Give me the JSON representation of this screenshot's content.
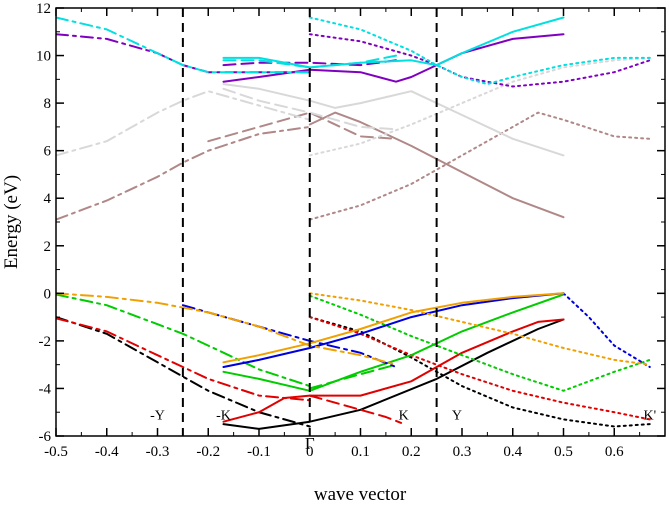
{
  "chart_data": {
    "type": "line",
    "title": "",
    "xlabel": "wave vector",
    "ylabel": "Energy (eV)",
    "xlim": [
      -0.5,
      0.7
    ],
    "ylim": [
      -6,
      12
    ],
    "xticks": [
      -0.5,
      -0.4,
      -0.3,
      -0.2,
      -0.1,
      0,
      0.1,
      0.2,
      0.3,
      0.4,
      0.5,
      0.6
    ],
    "yticks": [
      -6,
      -4,
      -2,
      0,
      2,
      4,
      6,
      8,
      10,
      12
    ],
    "grid": false,
    "legend": "none",
    "vlines": [
      -0.25,
      0,
      0.25
    ],
    "annotations": [
      {
        "text": "-Y",
        "x": -0.3,
        "y": -5.3
      },
      {
        "text": "-K",
        "x": -0.17,
        "y": -5.3
      },
      {
        "text": "K",
        "x": 0.185,
        "y": -5.3
      },
      {
        "text": "Y",
        "x": 0.29,
        "y": -5.3
      },
      {
        "text": "K'",
        "x": 0.67,
        "y": -5.3
      },
      {
        "text": "Γ",
        "x": 0,
        "y": -6.55
      }
    ],
    "series": [
      {
        "color": "#000000",
        "dash": "dashdot",
        "points": [
          [
            -0.5,
            -1.0
          ],
          [
            -0.4,
            -1.7
          ],
          [
            -0.3,
            -2.9
          ],
          [
            -0.25,
            -3.5
          ],
          [
            -0.2,
            -4.1
          ],
          [
            -0.1,
            -5.0
          ],
          [
            0,
            -5.6
          ]
        ]
      },
      {
        "color": "#000000",
        "dash": "solid",
        "points": [
          [
            -0.17,
            -5.5
          ],
          [
            -0.1,
            -5.7
          ],
          [
            0,
            -5.4
          ],
          [
            0.1,
            -4.9
          ],
          [
            0.25,
            -3.6
          ],
          [
            0.35,
            -2.5
          ],
          [
            0.45,
            -1.5
          ],
          [
            0.5,
            -1.1
          ]
        ]
      },
      {
        "color": "#000000",
        "dash": "dot",
        "points": [
          [
            0,
            -1.0
          ],
          [
            0.1,
            -1.6
          ],
          [
            0.2,
            -2.7
          ],
          [
            0.3,
            -3.9
          ],
          [
            0.4,
            -4.8
          ],
          [
            0.5,
            -5.3
          ],
          [
            0.6,
            -5.6
          ],
          [
            0.67,
            -5.5
          ]
        ]
      },
      {
        "color": "#e00000",
        "dash": "dashdot",
        "points": [
          [
            -0.5,
            -1.05
          ],
          [
            -0.4,
            -1.6
          ],
          [
            -0.3,
            -2.6
          ],
          [
            -0.25,
            -3.1
          ],
          [
            -0.2,
            -3.6
          ],
          [
            -0.1,
            -4.3
          ],
          [
            0,
            -4.5
          ]
        ]
      },
      {
        "color": "#e00000",
        "dash": "dash",
        "points": [
          [
            0,
            -4.3
          ],
          [
            0.05,
            -4.6
          ],
          [
            0.1,
            -4.9
          ],
          [
            0.15,
            -5.2
          ],
          [
            0.18,
            -5.45
          ]
        ]
      },
      {
        "color": "#e00000",
        "dash": "solid",
        "points": [
          [
            -0.17,
            -5.4
          ],
          [
            -0.1,
            -5.0
          ],
          [
            -0.05,
            -4.4
          ],
          [
            0,
            -4.3
          ],
          [
            0.1,
            -4.3
          ],
          [
            0.2,
            -3.7
          ],
          [
            0.3,
            -2.5
          ],
          [
            0.4,
            -1.6
          ],
          [
            0.45,
            -1.2
          ],
          [
            0.5,
            -1.1
          ]
        ]
      },
      {
        "color": "#e00000",
        "dash": "dot",
        "points": [
          [
            0,
            -1.0
          ],
          [
            0.1,
            -1.7
          ],
          [
            0.2,
            -2.6
          ],
          [
            0.3,
            -3.4
          ],
          [
            0.4,
            -4.1
          ],
          [
            0.5,
            -4.6
          ],
          [
            0.6,
            -5.0
          ],
          [
            0.67,
            -5.3
          ]
        ]
      },
      {
        "color": "#00cc00",
        "dash": "dashdot",
        "points": [
          [
            -0.5,
            -0.05
          ],
          [
            -0.4,
            -0.5
          ],
          [
            -0.3,
            -1.3
          ],
          [
            -0.25,
            -1.7
          ],
          [
            -0.2,
            -2.2
          ],
          [
            -0.1,
            -3.2
          ],
          [
            0,
            -3.9
          ]
        ]
      },
      {
        "color": "#00cc00",
        "dash": "dash",
        "points": [
          [
            0,
            -4.0
          ],
          [
            0.1,
            -3.4
          ],
          [
            0.17,
            -3.0
          ]
        ]
      },
      {
        "color": "#00cc00",
        "dash": "solid",
        "points": [
          [
            -0.17,
            -3.3
          ],
          [
            -0.1,
            -3.6
          ],
          [
            0,
            -4.1
          ],
          [
            0.05,
            -3.7
          ],
          [
            0.1,
            -3.3
          ],
          [
            0.2,
            -2.6
          ],
          [
            0.3,
            -1.6
          ],
          [
            0.4,
            -0.8
          ],
          [
            0.5,
            -0.05
          ]
        ]
      },
      {
        "color": "#00cc00",
        "dash": "dot",
        "points": [
          [
            0,
            -0.1
          ],
          [
            0.1,
            -0.9
          ],
          [
            0.2,
            -1.8
          ],
          [
            0.3,
            -2.6
          ],
          [
            0.4,
            -3.4
          ],
          [
            0.5,
            -4.1
          ],
          [
            0.6,
            -3.3
          ],
          [
            0.67,
            -2.8
          ]
        ]
      },
      {
        "color": "#0000dd",
        "dash": "dashdot",
        "points": [
          [
            -0.25,
            -0.5
          ],
          [
            -0.2,
            -0.8
          ],
          [
            -0.1,
            -1.4
          ],
          [
            0,
            -2.0
          ],
          [
            0.1,
            -2.5
          ],
          [
            0.17,
            -3.1
          ]
        ]
      },
      {
        "color": "#0000dd",
        "dash": "solid",
        "points": [
          [
            -0.17,
            -3.1
          ],
          [
            -0.1,
            -2.8
          ],
          [
            0,
            -2.3
          ],
          [
            0.1,
            -1.7
          ],
          [
            0.2,
            -1.0
          ],
          [
            0.3,
            -0.5
          ],
          [
            0.4,
            -0.2
          ],
          [
            0.5,
            0.0
          ]
        ]
      },
      {
        "color": "#0000dd",
        "dash": "dot",
        "points": [
          [
            0.5,
            0.0
          ],
          [
            0.55,
            -1.0
          ],
          [
            0.6,
            -2.2
          ],
          [
            0.67,
            -3.1
          ]
        ]
      },
      {
        "color": "#f0a000",
        "dash": "dashdot",
        "points": [
          [
            -0.5,
            0.0
          ],
          [
            -0.4,
            -0.15
          ],
          [
            -0.3,
            -0.4
          ],
          [
            -0.2,
            -0.8
          ],
          [
            -0.1,
            -1.4
          ],
          [
            0,
            -2.2
          ],
          [
            0.1,
            -2.6
          ],
          [
            0.17,
            -3.0
          ]
        ]
      },
      {
        "color": "#f0a000",
        "dash": "solid",
        "points": [
          [
            -0.17,
            -2.9
          ],
          [
            -0.1,
            -2.6
          ],
          [
            0,
            -2.1
          ],
          [
            0.1,
            -1.5
          ],
          [
            0.2,
            -0.8
          ],
          [
            0.3,
            -0.4
          ],
          [
            0.4,
            -0.15
          ],
          [
            0.5,
            0.0
          ]
        ]
      },
      {
        "color": "#f0a000",
        "dash": "dot",
        "points": [
          [
            0,
            0.0
          ],
          [
            0.1,
            -0.3
          ],
          [
            0.2,
            -0.7
          ],
          [
            0.3,
            -1.2
          ],
          [
            0.4,
            -1.7
          ],
          [
            0.5,
            -2.3
          ],
          [
            0.6,
            -2.8
          ],
          [
            0.67,
            -3.0
          ]
        ]
      },
      {
        "color": "#b08888",
        "dash": "dashdot",
        "points": [
          [
            -0.5,
            3.1
          ],
          [
            -0.4,
            3.9
          ],
          [
            -0.3,
            4.9
          ],
          [
            -0.25,
            5.5
          ],
          [
            -0.2,
            6.0
          ],
          [
            -0.1,
            6.7
          ],
          [
            0,
            7.0
          ]
        ]
      },
      {
        "color": "#b08888",
        "dash": "dash",
        "points": [
          [
            -0.2,
            6.4
          ],
          [
            -0.1,
            7.0
          ],
          [
            0,
            7.6
          ],
          [
            0.1,
            6.6
          ],
          [
            0.17,
            6.5
          ]
        ]
      },
      {
        "color": "#b08888",
        "dash": "solid",
        "points": [
          [
            0,
            7.1
          ],
          [
            0.05,
            7.6
          ],
          [
            0.1,
            7.2
          ],
          [
            0.2,
            6.2
          ],
          [
            0.3,
            5.1
          ],
          [
            0.4,
            4.0
          ],
          [
            0.5,
            3.2
          ]
        ]
      },
      {
        "color": "#b08888",
        "dash": "dot",
        "points": [
          [
            0,
            3.1
          ],
          [
            0.1,
            3.7
          ],
          [
            0.2,
            4.6
          ],
          [
            0.3,
            5.8
          ],
          [
            0.4,
            7.0
          ],
          [
            0.45,
            7.6
          ],
          [
            0.5,
            7.3
          ],
          [
            0.6,
            6.6
          ],
          [
            0.67,
            6.5
          ]
        ]
      },
      {
        "color": "#d8d8d8",
        "dash": "dashdot",
        "points": [
          [
            -0.5,
            5.8
          ],
          [
            -0.4,
            6.4
          ],
          [
            -0.3,
            7.6
          ],
          [
            -0.25,
            8.1
          ],
          [
            -0.2,
            8.5
          ],
          [
            -0.1,
            7.9
          ],
          [
            0,
            7.3
          ]
        ]
      },
      {
        "color": "#d8d8d8",
        "dash": "dash",
        "points": [
          [
            -0.17,
            8.6
          ],
          [
            -0.1,
            8.1
          ],
          [
            0,
            7.6
          ],
          [
            0.1,
            7.0
          ],
          [
            0.17,
            6.9
          ]
        ]
      },
      {
        "color": "#d8d8d8",
        "dash": "solid",
        "points": [
          [
            -0.17,
            8.8
          ],
          [
            -0.1,
            8.6
          ],
          [
            0,
            8.1
          ],
          [
            0.05,
            7.8
          ],
          [
            0.1,
            8.0
          ],
          [
            0.2,
            8.5
          ],
          [
            0.3,
            7.5
          ],
          [
            0.4,
            6.5
          ],
          [
            0.5,
            5.8
          ]
        ]
      },
      {
        "color": "#d8d8d8",
        "dash": "dot",
        "points": [
          [
            0,
            5.8
          ],
          [
            0.1,
            6.3
          ],
          [
            0.2,
            7.1
          ],
          [
            0.3,
            8.0
          ],
          [
            0.4,
            8.9
          ],
          [
            0.5,
            9.5
          ],
          [
            0.6,
            9.8
          ],
          [
            0.67,
            9.9
          ]
        ]
      },
      {
        "color": "#8000c0",
        "dash": "dashdot",
        "points": [
          [
            -0.5,
            10.9
          ],
          [
            -0.4,
            10.7
          ],
          [
            -0.3,
            10.1
          ],
          [
            -0.25,
            9.6
          ],
          [
            -0.2,
            9.3
          ],
          [
            -0.1,
            9.3
          ],
          [
            0,
            9.3
          ]
        ]
      },
      {
        "color": "#8000c0",
        "dash": "dash",
        "points": [
          [
            -0.17,
            9.6
          ],
          [
            -0.1,
            9.7
          ],
          [
            0,
            9.7
          ],
          [
            0.1,
            9.6
          ],
          [
            0.17,
            9.8
          ]
        ]
      },
      {
        "color": "#8000c0",
        "dash": "solid",
        "points": [
          [
            -0.17,
            8.9
          ],
          [
            -0.1,
            9.1
          ],
          [
            0,
            9.4
          ],
          [
            0.1,
            9.3
          ],
          [
            0.17,
            8.9
          ],
          [
            0.2,
            9.1
          ],
          [
            0.25,
            9.6
          ],
          [
            0.3,
            10.1
          ],
          [
            0.4,
            10.7
          ],
          [
            0.5,
            10.9
          ]
        ]
      },
      {
        "color": "#8000c0",
        "dash": "dot",
        "points": [
          [
            0,
            10.9
          ],
          [
            0.1,
            10.6
          ],
          [
            0.2,
            10.0
          ],
          [
            0.25,
            9.6
          ],
          [
            0.3,
            9.1
          ],
          [
            0.4,
            8.7
          ],
          [
            0.5,
            8.9
          ],
          [
            0.6,
            9.3
          ],
          [
            0.67,
            9.8
          ]
        ]
      },
      {
        "color": "#00e0e0",
        "dash": "dashdot",
        "points": [
          [
            -0.5,
            11.6
          ],
          [
            -0.4,
            11.1
          ],
          [
            -0.3,
            10.1
          ],
          [
            -0.25,
            9.6
          ],
          [
            -0.2,
            9.3
          ],
          [
            -0.1,
            9.3
          ],
          [
            0,
            9.3
          ]
        ]
      },
      {
        "color": "#00e0e0",
        "dash": "dash",
        "points": [
          [
            -0.17,
            9.8
          ],
          [
            -0.1,
            9.8
          ],
          [
            0,
            9.5
          ],
          [
            0.1,
            9.7
          ],
          [
            0.17,
            10.0
          ]
        ]
      },
      {
        "color": "#00e0e0",
        "dash": "solid",
        "points": [
          [
            -0.17,
            9.9
          ],
          [
            -0.1,
            9.9
          ],
          [
            0,
            9.5
          ],
          [
            0.1,
            9.7
          ],
          [
            0.2,
            9.8
          ],
          [
            0.25,
            9.6
          ],
          [
            0.3,
            10.1
          ],
          [
            0.4,
            11.0
          ],
          [
            0.5,
            11.6
          ]
        ]
      },
      {
        "color": "#00e0e0",
        "dash": "dot",
        "points": [
          [
            0,
            11.6
          ],
          [
            0.1,
            11.1
          ],
          [
            0.2,
            10.2
          ],
          [
            0.25,
            9.6
          ],
          [
            0.3,
            9.1
          ],
          [
            0.35,
            8.8
          ],
          [
            0.4,
            9.1
          ],
          [
            0.5,
            9.6
          ],
          [
            0.6,
            9.9
          ],
          [
            0.67,
            9.9
          ]
        ]
      }
    ]
  }
}
